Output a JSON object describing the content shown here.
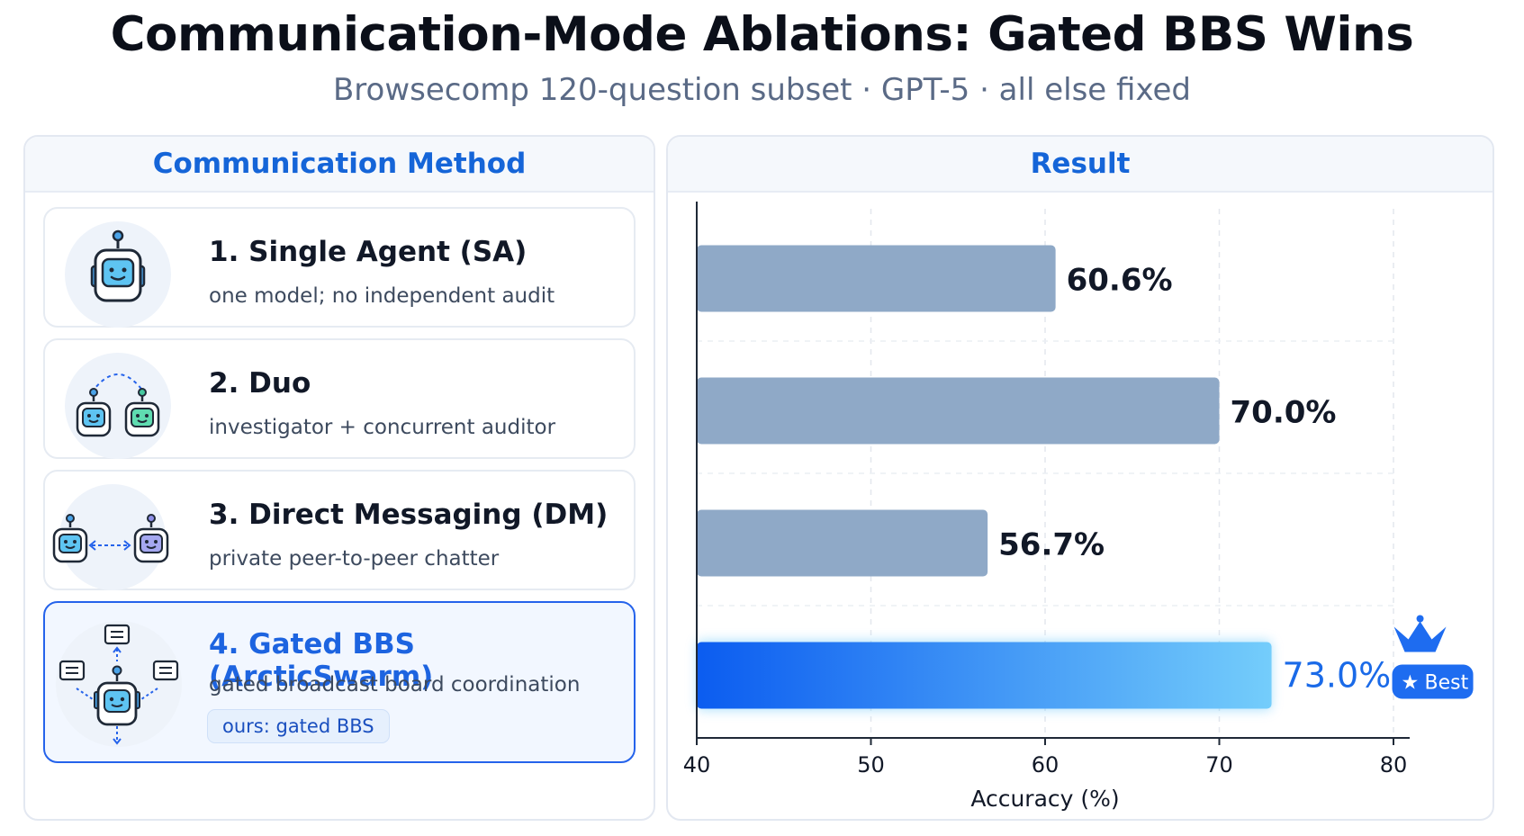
{
  "title": "Communication-Mode Ablations: Gated BBS Wins",
  "subtitle": "Browsecomp 120-question subset · GPT-5 · all else fixed",
  "left_panel": {
    "header": "Communication Method",
    "methods": [
      {
        "name": "1. Single Agent (SA)",
        "desc": "one model; no independent audit",
        "icon": "robot-icon"
      },
      {
        "name": "2. Duo",
        "desc": "investigator + concurrent auditor",
        "icon": "two-robots-icon"
      },
      {
        "name": "3. Direct Messaging (DM)",
        "desc": "private peer-to-peer chatter",
        "icon": "robots-messaging-icon"
      },
      {
        "name": "4. Gated BBS (ArcticSwarm)",
        "desc": "gated  broadcast board coordination",
        "badge": "ours:  gated BBS",
        "icon": "robot-board-icon"
      }
    ]
  },
  "right_panel": {
    "header": "Result"
  },
  "colors": {
    "bar_default": "#8fa9c7",
    "bar_best_start": "#0b5cf0",
    "bar_best_end": "#74cdfb",
    "accent": "#1565d8"
  },
  "chart_data": {
    "type": "bar",
    "orientation": "horizontal",
    "categories": [
      "1. Single Agent (SA)",
      "2. Duo",
      "3. Direct Messaging (DM)",
      "4. Gated BBS (ArcticSwarm)"
    ],
    "values": [
      60.6,
      70.0,
      56.7,
      73.0
    ],
    "value_labels": [
      "60.6%",
      "70.0%",
      "56.7%",
      "73.0%"
    ],
    "xlabel": "Accuracy (%)",
    "xlim": [
      40,
      80
    ],
    "xticks": [
      40,
      50,
      60,
      70,
      80
    ],
    "grid": true,
    "best_index": 3,
    "best_label": "Best"
  }
}
